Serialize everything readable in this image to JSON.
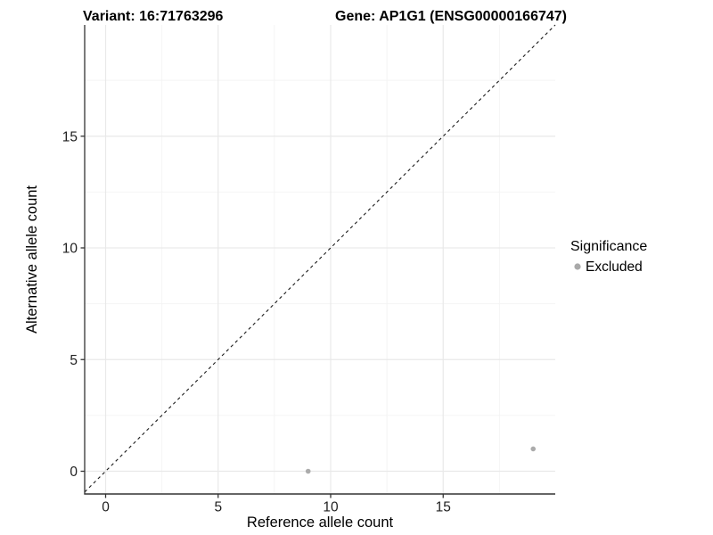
{
  "title": {
    "variant": "Variant: 16:71763296",
    "gene": "Gene: AP1G1 (ENSG00000166747)"
  },
  "axes": {
    "x_label": "Reference allele count",
    "y_label": "Alternative allele count"
  },
  "legend": {
    "title": "Significance",
    "items": [
      {
        "label": "Excluded",
        "color": "#a9a9a9"
      }
    ]
  },
  "colors": {
    "background": "#ffffff",
    "grid_major": "#e9e9e9",
    "grid_minor": "#f4f4f4",
    "axis_line": "#333333",
    "identity_line": "#1a1a1a",
    "point_fill": "#ababab"
  },
  "chart_data": {
    "type": "scatter",
    "title": "Variant: 16:71763296   Gene: AP1G1 (ENSG00000166747)",
    "xlabel": "Reference allele count",
    "ylabel": "Alternative allele count",
    "xlim": [
      -1,
      20
    ],
    "ylim": [
      -1,
      20
    ],
    "x_ticks": [
      0,
      5,
      10,
      15
    ],
    "y_ticks": [
      0,
      5,
      10,
      15
    ],
    "minor_tick_step": 2.5,
    "grid": "major+minor",
    "legend_position": "right",
    "series": [
      {
        "name": "Excluded",
        "color": "#ababab",
        "points": [
          {
            "x": 9,
            "y": 0
          },
          {
            "x": 19,
            "y": 1
          }
        ]
      }
    ],
    "reference_line": {
      "type": "identity y=x",
      "style": "dashed",
      "from": [
        0,
        0
      ],
      "to": [
        20,
        20
      ]
    }
  }
}
